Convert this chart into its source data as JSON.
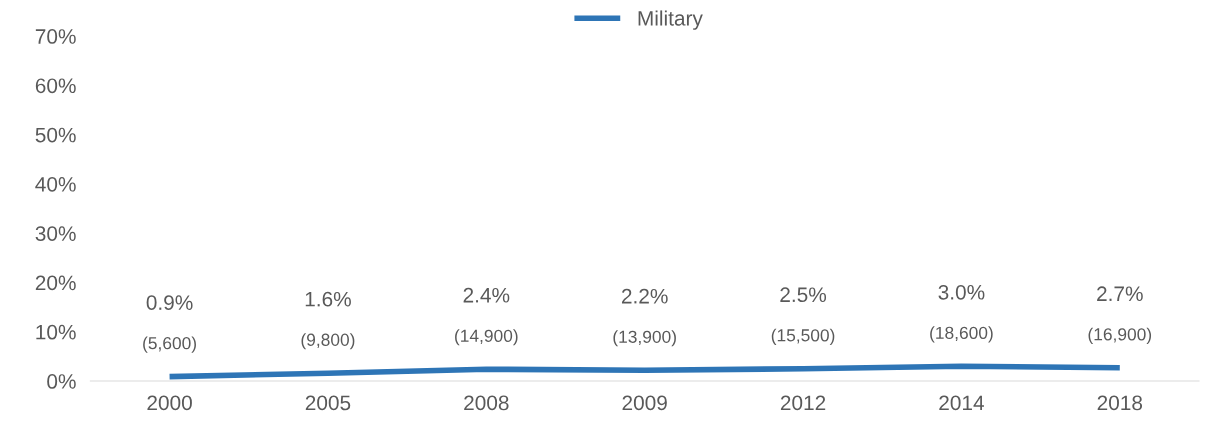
{
  "chart_data": {
    "type": "line",
    "categories": [
      "2000",
      "2005",
      "2008",
      "2009",
      "2012",
      "2014",
      "2018"
    ],
    "series": [
      {
        "name": "Military",
        "color": "#2e75b6",
        "values": [
          0.9,
          1.6,
          2.4,
          2.2,
          2.5,
          3.0,
          2.7
        ],
        "value_labels": [
          "0.9%\n(5,600)",
          "1.6%\n(9,800)",
          "2.4%\n(14,900)",
          "2.2%\n(13,900)",
          "2.5%\n(15,500)",
          "3.0%\n(18,600)",
          "2.7%\n(16,900)"
        ]
      }
    ],
    "ylim": [
      0,
      70
    ],
    "yticks": [
      {
        "value": 0,
        "label": "0%"
      },
      {
        "value": 10,
        "label": "10%"
      },
      {
        "value": 20,
        "label": "20%"
      },
      {
        "value": 30,
        "label": "30%"
      },
      {
        "value": 40,
        "label": "40%"
      },
      {
        "value": 50,
        "label": "50%"
      },
      {
        "value": 60,
        "label": "60%"
      },
      {
        "value": 70,
        "label": "70%"
      }
    ],
    "grid": false,
    "legend": "top",
    "marker": "none",
    "line_style": "solid"
  }
}
